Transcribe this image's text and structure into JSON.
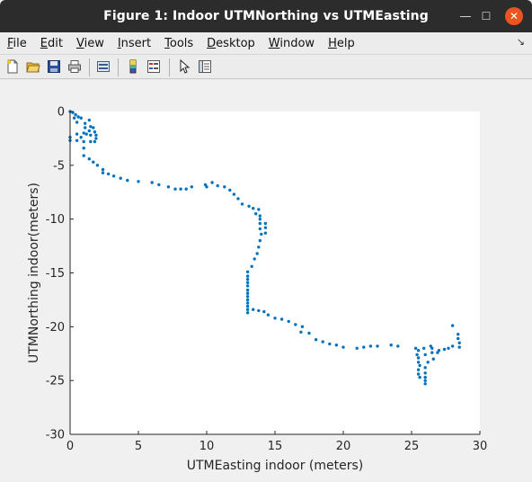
{
  "window": {
    "title": "Figure 1: Indoor UTMNorthing vs UTMEasting",
    "minimize_glyph": "—",
    "maximize_glyph": "☐",
    "close_glyph": "✕"
  },
  "menubar": {
    "items": [
      {
        "accel": "F",
        "rest": "ile"
      },
      {
        "accel": "E",
        "rest": "dit"
      },
      {
        "accel": "V",
        "rest": "iew"
      },
      {
        "accel": "I",
        "rest": "nsert"
      },
      {
        "accel": "T",
        "rest": "ools"
      },
      {
        "accel": "D",
        "rest": "esktop"
      },
      {
        "accel": "W",
        "rest": "indow"
      },
      {
        "accel": "H",
        "rest": "elp"
      }
    ],
    "dock_glyph": "↘"
  },
  "toolbar": {
    "icons": [
      "new-figure-icon",
      "open-file-icon",
      "save-icon",
      "print-icon",
      "link-plot-icon",
      "insert-colorbar-icon",
      "insert-legend-icon",
      "select-arrow-icon",
      "property-editor-icon"
    ]
  },
  "chart_data": {
    "type": "scatter",
    "title": "",
    "xlabel": "UTMEasting indoor (meters)",
    "ylabel": "UTMNorthing indoor(meters)",
    "xlim": [
      0,
      30
    ],
    "ylim": [
      -30,
      0
    ],
    "xticks": [
      0,
      5,
      10,
      15,
      20,
      25,
      30
    ],
    "yticks": [
      0,
      -5,
      -10,
      -15,
      -20,
      -25,
      -30
    ],
    "grid": false,
    "marker_color": "#0072bd",
    "points": [
      [
        0.0,
        0.0
      ],
      [
        0.2,
        -0.1
      ],
      [
        0.4,
        -0.3
      ],
      [
        0.6,
        -0.5
      ],
      [
        0.3,
        -0.6
      ],
      [
        0.8,
        -0.6
      ],
      [
        0.5,
        -1.0
      ],
      [
        1.1,
        -1.1
      ],
      [
        1.4,
        -0.8
      ],
      [
        1.5,
        -1.4
      ],
      [
        1.4,
        -1.8
      ],
      [
        1.2,
        -2.1
      ],
      [
        1.5,
        -2.2
      ],
      [
        1.7,
        -1.5
      ],
      [
        1.8,
        -1.9
      ],
      [
        1.9,
        -2.2
      ],
      [
        1.9,
        -2.5
      ],
      [
        1.8,
        -2.8
      ],
      [
        1.5,
        -2.8
      ],
      [
        1.1,
        -1.5
      ],
      [
        1.0,
        -2.0
      ],
      [
        0.8,
        -2.4
      ],
      [
        0.5,
        -2.1
      ],
      [
        0.5,
        -2.7
      ],
      [
        0.0,
        -2.4
      ],
      [
        0.0,
        -2.7
      ],
      [
        1.0,
        -2.8
      ],
      [
        1.0,
        -3.4
      ],
      [
        1.0,
        -4.1
      ],
      [
        1.4,
        -4.4
      ],
      [
        1.7,
        -4.7
      ],
      [
        2.0,
        -5.0
      ],
      [
        2.4,
        -5.4
      ],
      [
        2.4,
        -5.7
      ],
      [
        2.8,
        -5.8
      ],
      [
        3.2,
        -6.0
      ],
      [
        3.7,
        -6.2
      ],
      [
        4.2,
        -6.4
      ],
      [
        5.0,
        -6.5
      ],
      [
        6.0,
        -6.6
      ],
      [
        6.5,
        -6.8
      ],
      [
        7.2,
        -7.0
      ],
      [
        7.7,
        -7.2
      ],
      [
        8.1,
        -7.2
      ],
      [
        8.5,
        -7.2
      ],
      [
        8.9,
        -7.0
      ],
      [
        9.9,
        -6.8
      ],
      [
        10.0,
        -7.0
      ],
      [
        10.4,
        -6.6
      ],
      [
        10.8,
        -6.9
      ],
      [
        11.3,
        -7.0
      ],
      [
        11.7,
        -7.3
      ],
      [
        12.0,
        -7.7
      ],
      [
        12.3,
        -8.1
      ],
      [
        12.6,
        -8.6
      ],
      [
        13.1,
        -8.8
      ],
      [
        13.4,
        -9.0
      ],
      [
        13.8,
        -9.1
      ],
      [
        13.6,
        -9.5
      ],
      [
        13.9,
        -9.7
      ],
      [
        13.9,
        -10.0
      ],
      [
        13.9,
        -10.4
      ],
      [
        14.3,
        -10.4
      ],
      [
        14.3,
        -10.8
      ],
      [
        13.9,
        -10.9
      ],
      [
        14.3,
        -11.3
      ],
      [
        14.0,
        -11.4
      ],
      [
        13.9,
        -12.0
      ],
      [
        13.8,
        -12.6
      ],
      [
        13.7,
        -13.2
      ],
      [
        13.5,
        -13.7
      ],
      [
        13.3,
        -14.4
      ],
      [
        13.0,
        -14.9
      ],
      [
        13.0,
        -15.3
      ],
      [
        13.0,
        -15.6
      ],
      [
        13.0,
        -15.9
      ],
      [
        13.0,
        -16.2
      ],
      [
        13.0,
        -16.6
      ],
      [
        13.0,
        -16.9
      ],
      [
        13.0,
        -17.2
      ],
      [
        13.0,
        -17.5
      ],
      [
        13.0,
        -17.8
      ],
      [
        13.0,
        -18.1
      ],
      [
        13.0,
        -18.4
      ],
      [
        13.0,
        -18.7
      ],
      [
        13.4,
        -18.4
      ],
      [
        13.8,
        -18.5
      ],
      [
        14.2,
        -18.6
      ],
      [
        14.5,
        -18.9
      ],
      [
        15.0,
        -19.2
      ],
      [
        15.5,
        -19.3
      ],
      [
        16.0,
        -19.5
      ],
      [
        16.5,
        -19.8
      ],
      [
        17.0,
        -20.0
      ],
      [
        16.9,
        -20.5
      ],
      [
        17.5,
        -20.6
      ],
      [
        18.0,
        -21.2
      ],
      [
        18.5,
        -21.4
      ],
      [
        19.0,
        -21.6
      ],
      [
        19.5,
        -21.7
      ],
      [
        20.0,
        -21.9
      ],
      [
        21.0,
        -22.0
      ],
      [
        21.5,
        -21.9
      ],
      [
        22.0,
        -21.8
      ],
      [
        22.5,
        -21.8
      ],
      [
        23.5,
        -21.7
      ],
      [
        24.0,
        -21.8
      ],
      [
        25.3,
        -22.0
      ],
      [
        25.5,
        -22.2
      ],
      [
        25.9,
        -22.0
      ],
      [
        25.4,
        -22.6
      ],
      [
        25.5,
        -22.9
      ],
      [
        25.5,
        -23.3
      ],
      [
        25.6,
        -23.6
      ],
      [
        25.5,
        -24.0
      ],
      [
        25.5,
        -24.4
      ],
      [
        25.6,
        -24.7
      ],
      [
        26.0,
        -24.3
      ],
      [
        26.0,
        -24.7
      ],
      [
        26.0,
        -25.0
      ],
      [
        26.0,
        -25.3
      ],
      [
        26.0,
        -23.8
      ],
      [
        26.0,
        -22.6
      ],
      [
        26.5,
        -22.0
      ],
      [
        26.4,
        -21.8
      ],
      [
        26.5,
        -22.4
      ],
      [
        26.6,
        -23.0
      ],
      [
        26.2,
        -23.3
      ],
      [
        27.0,
        -22.2
      ],
      [
        27.4,
        -22.1
      ],
      [
        27.7,
        -22.0
      ],
      [
        28.0,
        -21.8
      ],
      [
        28.0,
        -19.9
      ],
      [
        28.4,
        -20.7
      ],
      [
        28.4,
        -21.1
      ],
      [
        28.5,
        -21.5
      ],
      [
        28.5,
        -21.9
      ],
      [
        26.9,
        -22.4
      ]
    ]
  }
}
